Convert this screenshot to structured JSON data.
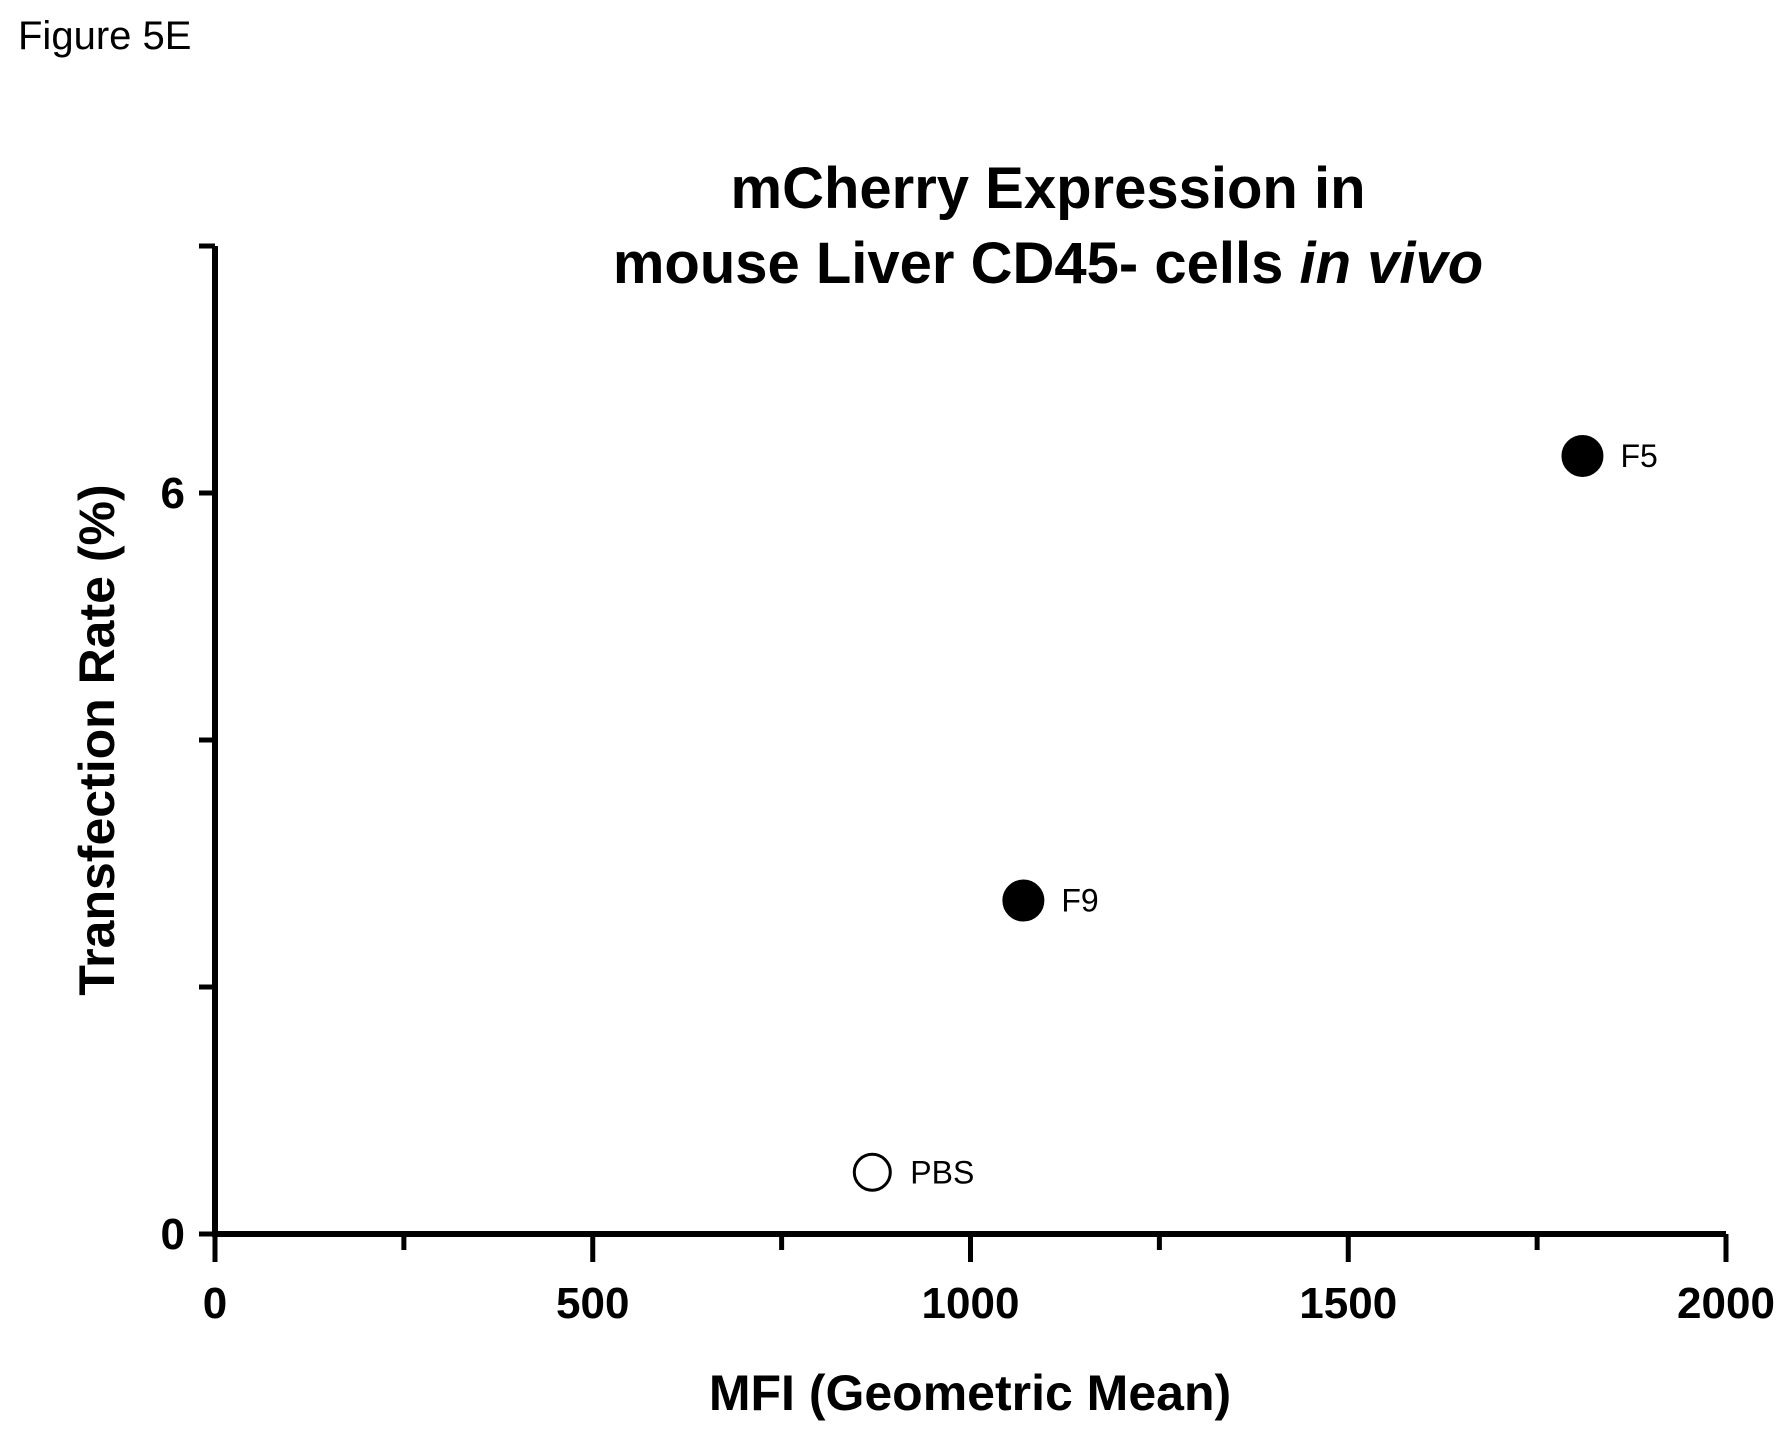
{
  "figure_label": "Figure 5E",
  "chart_data": {
    "type": "scatter",
    "title_line1": "mCherry Expression in",
    "title_line2_prefix": "mouse Liver CD45- cells ",
    "title_line2_italic": "in vivo",
    "xlabel": "MFI (Geometric Mean)",
    "ylabel": "Transfection Rate (%)",
    "xlim": [
      0,
      2000
    ],
    "ylim": [
      0,
      8
    ],
    "x_major_ticks": [
      0,
      500,
      1000,
      1500,
      2000
    ],
    "x_minor_ticks": [
      250,
      750,
      1250,
      1750
    ],
    "x_tick_labels": [
      "0",
      "500",
      "1000",
      "1500",
      "2000"
    ],
    "y_ticks": [
      0,
      2,
      4,
      6,
      8
    ],
    "y_tick_labels": [
      {
        "value": 0,
        "label": "0"
      },
      {
        "value": 6,
        "label": "6"
      }
    ],
    "points": [
      {
        "label": "F5",
        "x": 1810,
        "y": 6.3,
        "filled": true
      },
      {
        "label": "F9",
        "x": 1070,
        "y": 2.7,
        "filled": true
      },
      {
        "label": "PBS",
        "x": 870,
        "y": 0.5,
        "filled": false
      }
    ],
    "grid": false,
    "colors": {
      "ink": "#000000",
      "open_fill": "#ffffff"
    }
  }
}
